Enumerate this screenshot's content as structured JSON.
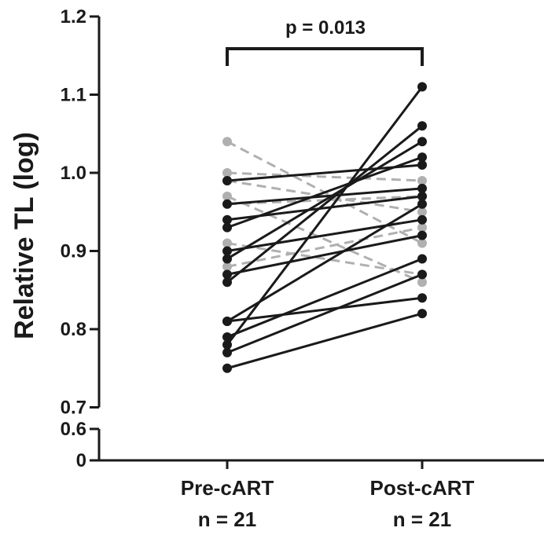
{
  "chart_data": {
    "type": "line",
    "ylabel": "Relative TL (log)",
    "y_ticks_upper": [
      {
        "label": "0.7",
        "value": 0.7
      },
      {
        "label": "0.8",
        "value": 0.8
      },
      {
        "label": "0.9",
        "value": 0.9
      },
      {
        "label": "1.0",
        "value": 1.0
      },
      {
        "label": "1.1",
        "value": 1.1
      },
      {
        "label": "1.2",
        "value": 1.2
      }
    ],
    "y_ticks_lower": [
      {
        "label": "0",
        "value": 0
      },
      {
        "label": "0.6",
        "value": 0.6
      }
    ],
    "ylim": [
      0,
      1.2
    ],
    "axis_break": [
      0.6,
      0.7
    ],
    "categories": [
      {
        "line1": "Pre-cART",
        "line2": "n = 21"
      },
      {
        "line1": "Post-cART",
        "line2": "n = 21"
      }
    ],
    "significance": {
      "label": "p = 0.013"
    },
    "solid_color": "#1a1a1a",
    "dashed_color": "#b0b0b0",
    "pairs_solid": [
      {
        "pre": 0.99,
        "post": 1.01
      },
      {
        "pre": 0.96,
        "post": 0.98
      },
      {
        "pre": 0.94,
        "post": 0.97
      },
      {
        "pre": 0.93,
        "post": 1.02
      },
      {
        "pre": 0.9,
        "post": 0.94
      },
      {
        "pre": 0.89,
        "post": 1.04
      },
      {
        "pre": 0.87,
        "post": 0.92
      },
      {
        "pre": 0.86,
        "post": 1.06
      },
      {
        "pre": 0.81,
        "post": 0.84
      },
      {
        "pre": 0.81,
        "post": 0.96
      },
      {
        "pre": 0.79,
        "post": 0.89
      },
      {
        "pre": 0.78,
        "post": 1.11
      },
      {
        "pre": 0.77,
        "post": 0.87
      },
      {
        "pre": 0.75,
        "post": 0.82
      }
    ],
    "pairs_dashed": [
      {
        "pre": 1.04,
        "post": 0.91
      },
      {
        "pre": 1.0,
        "post": 0.99
      },
      {
        "pre": 0.99,
        "post": 0.95
      },
      {
        "pre": 0.97,
        "post": 0.86
      },
      {
        "pre": 0.96,
        "post": 0.97
      },
      {
        "pre": 0.91,
        "post": 0.87
      },
      {
        "pre": 0.88,
        "post": 0.93
      }
    ]
  }
}
